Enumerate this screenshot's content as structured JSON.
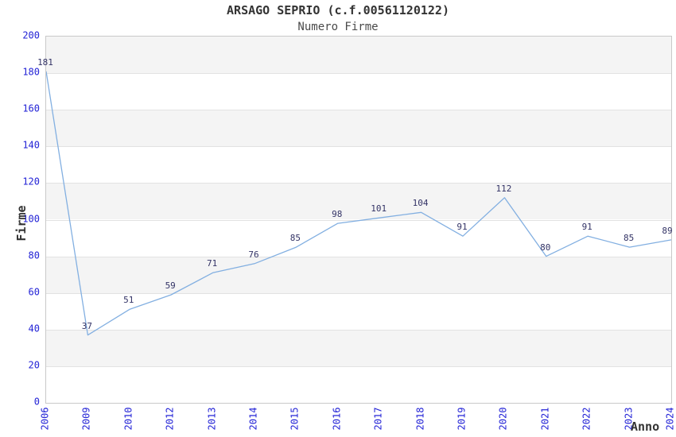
{
  "header": {
    "title": "ARSAGO SEPRIO (c.f.00561120122)",
    "subtitle": "Numero Firme"
  },
  "chart_data": {
    "type": "line",
    "title": "ARSAGO SEPRIO (c.f.00561120122)",
    "subtitle": "Numero Firme",
    "xlabel": "Anno",
    "ylabel": "Firme",
    "categories": [
      "2006",
      "2009",
      "2010",
      "2012",
      "2013",
      "2014",
      "2015",
      "2016",
      "2017",
      "2018",
      "2019",
      "2020",
      "2021",
      "2022",
      "2023",
      "2024"
    ],
    "values": [
      181,
      37,
      51,
      59,
      71,
      76,
      85,
      98,
      101,
      104,
      91,
      112,
      80,
      91,
      85,
      89
    ],
    "series_name": "Numero Firme",
    "ylim": [
      0,
      200
    ],
    "ytick_step": 20,
    "yticks": [
      0,
      20,
      40,
      60,
      80,
      100,
      120,
      140,
      160,
      180,
      200
    ],
    "grid": "alternating horizontal bands every 20 units, gray band starts at top (200-180)",
    "legend": "none",
    "point_labels_visible": true,
    "colors": {
      "line": "#82afe1",
      "tick_labels": "#2323d6",
      "point_labels": "#333366",
      "band_gray": "#f4f4f4",
      "band_white": "#ffffff",
      "gridline": "#e2e2e2",
      "plot_border": "#c9c9c9",
      "title_text": "#333333",
      "subtitle_text": "#4a4a4a",
      "axis_title_text": "#333333",
      "background": "#ffffff"
    }
  }
}
